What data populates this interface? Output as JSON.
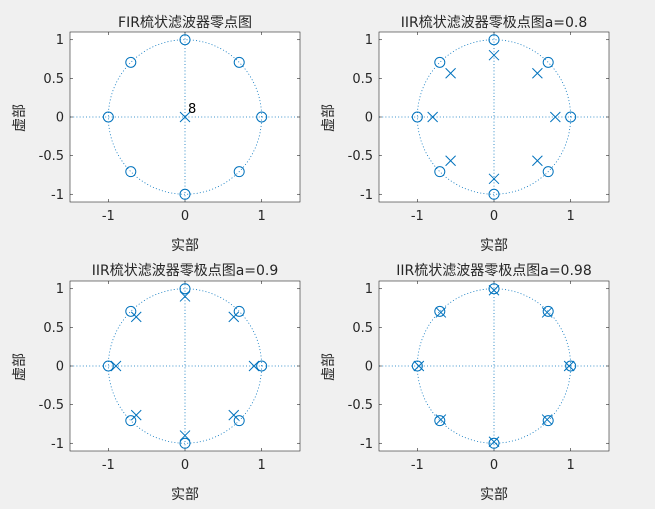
{
  "figure": {
    "background": "#f0f0f0",
    "axes_background": "#ffffff",
    "series_color": "#0072bd",
    "text_color": "#262626"
  },
  "chart_data": [
    {
      "type": "scatter",
      "title": "FIR梳状滤波器零点图",
      "xlabel": "实部",
      "ylabel": "虚部",
      "xlim": [
        -1.5,
        1.5
      ],
      "ylim": [
        -1.1,
        1.1
      ],
      "xticks": [
        -1,
        0,
        1
      ],
      "xtick_labels": [
        "-1",
        "0",
        "1"
      ],
      "yticks": [
        -1,
        -0.5,
        0,
        0.5,
        1
      ],
      "ytick_labels": [
        "-1",
        "-0.5",
        "0",
        "0.5",
        "1"
      ],
      "unit_circle": true,
      "axis_lines": true,
      "grid": false,
      "zeros": [
        [
          1,
          0
        ],
        [
          0.707,
          0.707
        ],
        [
          0,
          1
        ],
        [
          -0.707,
          0.707
        ],
        [
          -1,
          0
        ],
        [
          -0.707,
          -0.707
        ],
        [
          0,
          -1
        ],
        [
          0.707,
          -0.707
        ]
      ],
      "poles": [
        [
          0,
          0
        ]
      ],
      "annotation": "8"
    },
    {
      "type": "scatter",
      "title": "IIR梳状滤波器零极点图a=0.8",
      "xlabel": "实部",
      "ylabel": "虚部",
      "xlim": [
        -1.5,
        1.5
      ],
      "ylim": [
        -1.1,
        1.1
      ],
      "xticks": [
        -1,
        0,
        1
      ],
      "xtick_labels": [
        "-1",
        "0",
        "1"
      ],
      "yticks": [
        -1,
        -0.5,
        0,
        0.5,
        1
      ],
      "ytick_labels": [
        "-1",
        "-0.5",
        "0",
        "0.5",
        "1"
      ],
      "unit_circle": true,
      "axis_lines": true,
      "grid": false,
      "zeros": [
        [
          1,
          0
        ],
        [
          0.707,
          0.707
        ],
        [
          0,
          1
        ],
        [
          -0.707,
          0.707
        ],
        [
          -1,
          0
        ],
        [
          -0.707,
          -0.707
        ],
        [
          0,
          -1
        ],
        [
          0.707,
          -0.707
        ]
      ],
      "poles": [
        [
          0.8,
          0
        ],
        [
          0.566,
          0.566
        ],
        [
          0,
          0.8
        ],
        [
          -0.566,
          0.566
        ],
        [
          -0.8,
          0
        ],
        [
          -0.566,
          -0.566
        ],
        [
          0,
          -0.8
        ],
        [
          0.566,
          -0.566
        ]
      ]
    },
    {
      "type": "scatter",
      "title": "IIR梳状滤波器零极点图a=0.9",
      "xlabel": "实部",
      "ylabel": "虚部",
      "xlim": [
        -1.5,
        1.5
      ],
      "ylim": [
        -1.1,
        1.1
      ],
      "xticks": [
        -1,
        0,
        1
      ],
      "xtick_labels": [
        "-1",
        "0",
        "1"
      ],
      "yticks": [
        -1,
        -0.5,
        0,
        0.5,
        1
      ],
      "ytick_labels": [
        "-1",
        "-0.5",
        "0",
        "0.5",
        "1"
      ],
      "unit_circle": true,
      "axis_lines": true,
      "grid": false,
      "zeros": [
        [
          1,
          0
        ],
        [
          0.707,
          0.707
        ],
        [
          0,
          1
        ],
        [
          -0.707,
          0.707
        ],
        [
          -1,
          0
        ],
        [
          -0.707,
          -0.707
        ],
        [
          0,
          -1
        ],
        [
          0.707,
          -0.707
        ]
      ],
      "poles": [
        [
          0.9,
          0
        ],
        [
          0.636,
          0.636
        ],
        [
          0,
          0.9
        ],
        [
          -0.636,
          0.636
        ],
        [
          -0.9,
          0
        ],
        [
          -0.636,
          -0.636
        ],
        [
          0,
          -0.9
        ],
        [
          0.636,
          -0.636
        ]
      ]
    },
    {
      "type": "scatter",
      "title": "IIR梳状滤波器零极点图a=0.98",
      "xlabel": "实部",
      "ylabel": "虚部",
      "xlim": [
        -1.5,
        1.5
      ],
      "ylim": [
        -1.1,
        1.1
      ],
      "xticks": [
        -1,
        0,
        1
      ],
      "xtick_labels": [
        "-1",
        "0",
        "1"
      ],
      "yticks": [
        -1,
        -0.5,
        0,
        0.5,
        1
      ],
      "ytick_labels": [
        "-1",
        "-0.5",
        "0",
        "0.5",
        "1"
      ],
      "unit_circle": true,
      "axis_lines": true,
      "grid": false,
      "zeros": [
        [
          1,
          0
        ],
        [
          0.707,
          0.707
        ],
        [
          0,
          1
        ],
        [
          -0.707,
          0.707
        ],
        [
          -1,
          0
        ],
        [
          -0.707,
          -0.707
        ],
        [
          0,
          -1
        ],
        [
          0.707,
          -0.707
        ]
      ],
      "poles": [
        [
          0.98,
          0
        ],
        [
          0.693,
          0.693
        ],
        [
          0,
          0.98
        ],
        [
          -0.693,
          0.693
        ],
        [
          -0.98,
          0
        ],
        [
          -0.693,
          -0.693
        ],
        [
          0,
          -0.98
        ],
        [
          0.693,
          -0.693
        ]
      ]
    }
  ]
}
